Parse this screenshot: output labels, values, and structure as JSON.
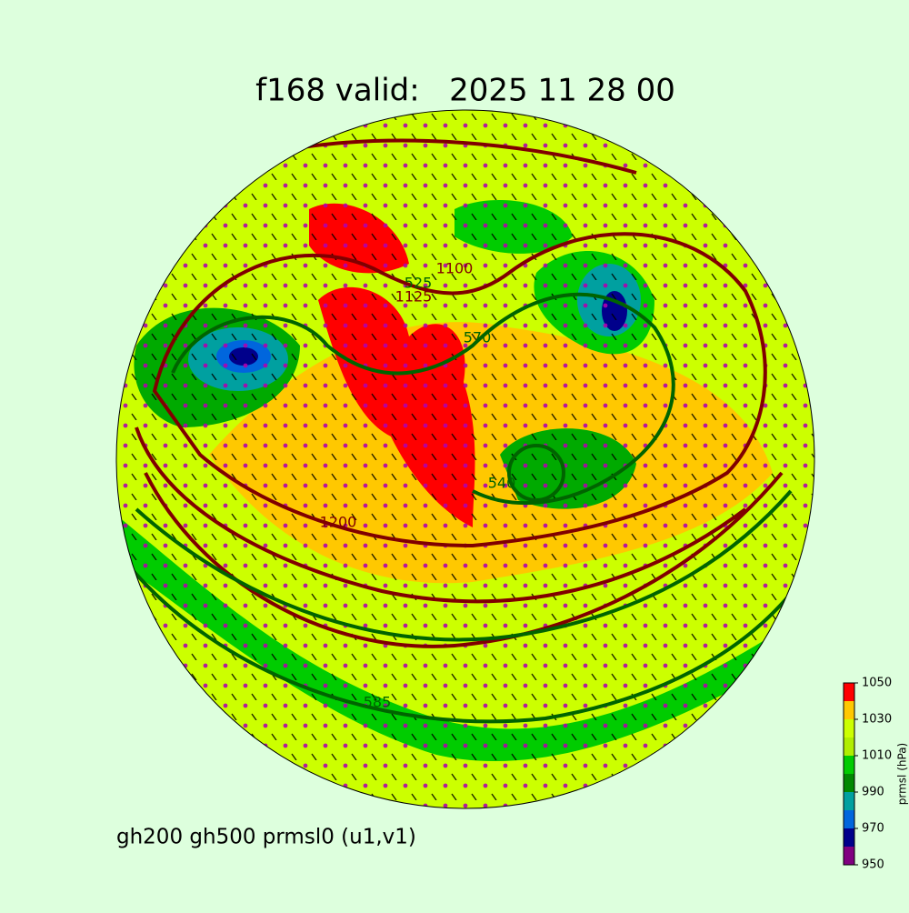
{
  "title": "f168 valid:   2025 11 28 00",
  "subtitle": "gh200 gh500 prmsl0 (u1,v1)",
  "colorbar": {
    "label": "prmsl (hPa)",
    "levels": [
      950,
      960,
      970,
      980,
      990,
      1000,
      1010,
      1020,
      1030,
      1040,
      1050
    ],
    "colors": [
      "#800080",
      "#00008b",
      "#0066dd",
      "#00a0a0",
      "#008800",
      "#00cc00",
      "#b0ee00",
      "#ccff00",
      "#ffc800",
      "#ff0000"
    ],
    "ticks": [
      950,
      970,
      990,
      1010,
      1030,
      1050
    ]
  },
  "contour_labels": [
    {
      "text": "1200",
      "color": "#800000"
    },
    {
      "text": "585",
      "color": "#006400"
    },
    {
      "text": "1100",
      "color": "#800000"
    },
    {
      "text": "525",
      "color": "#006400"
    },
    {
      "text": "1125",
      "color": "#800000"
    },
    {
      "text": "570",
      "color": "#006400"
    },
    {
      "text": "540",
      "color": "#006400"
    }
  ]
}
